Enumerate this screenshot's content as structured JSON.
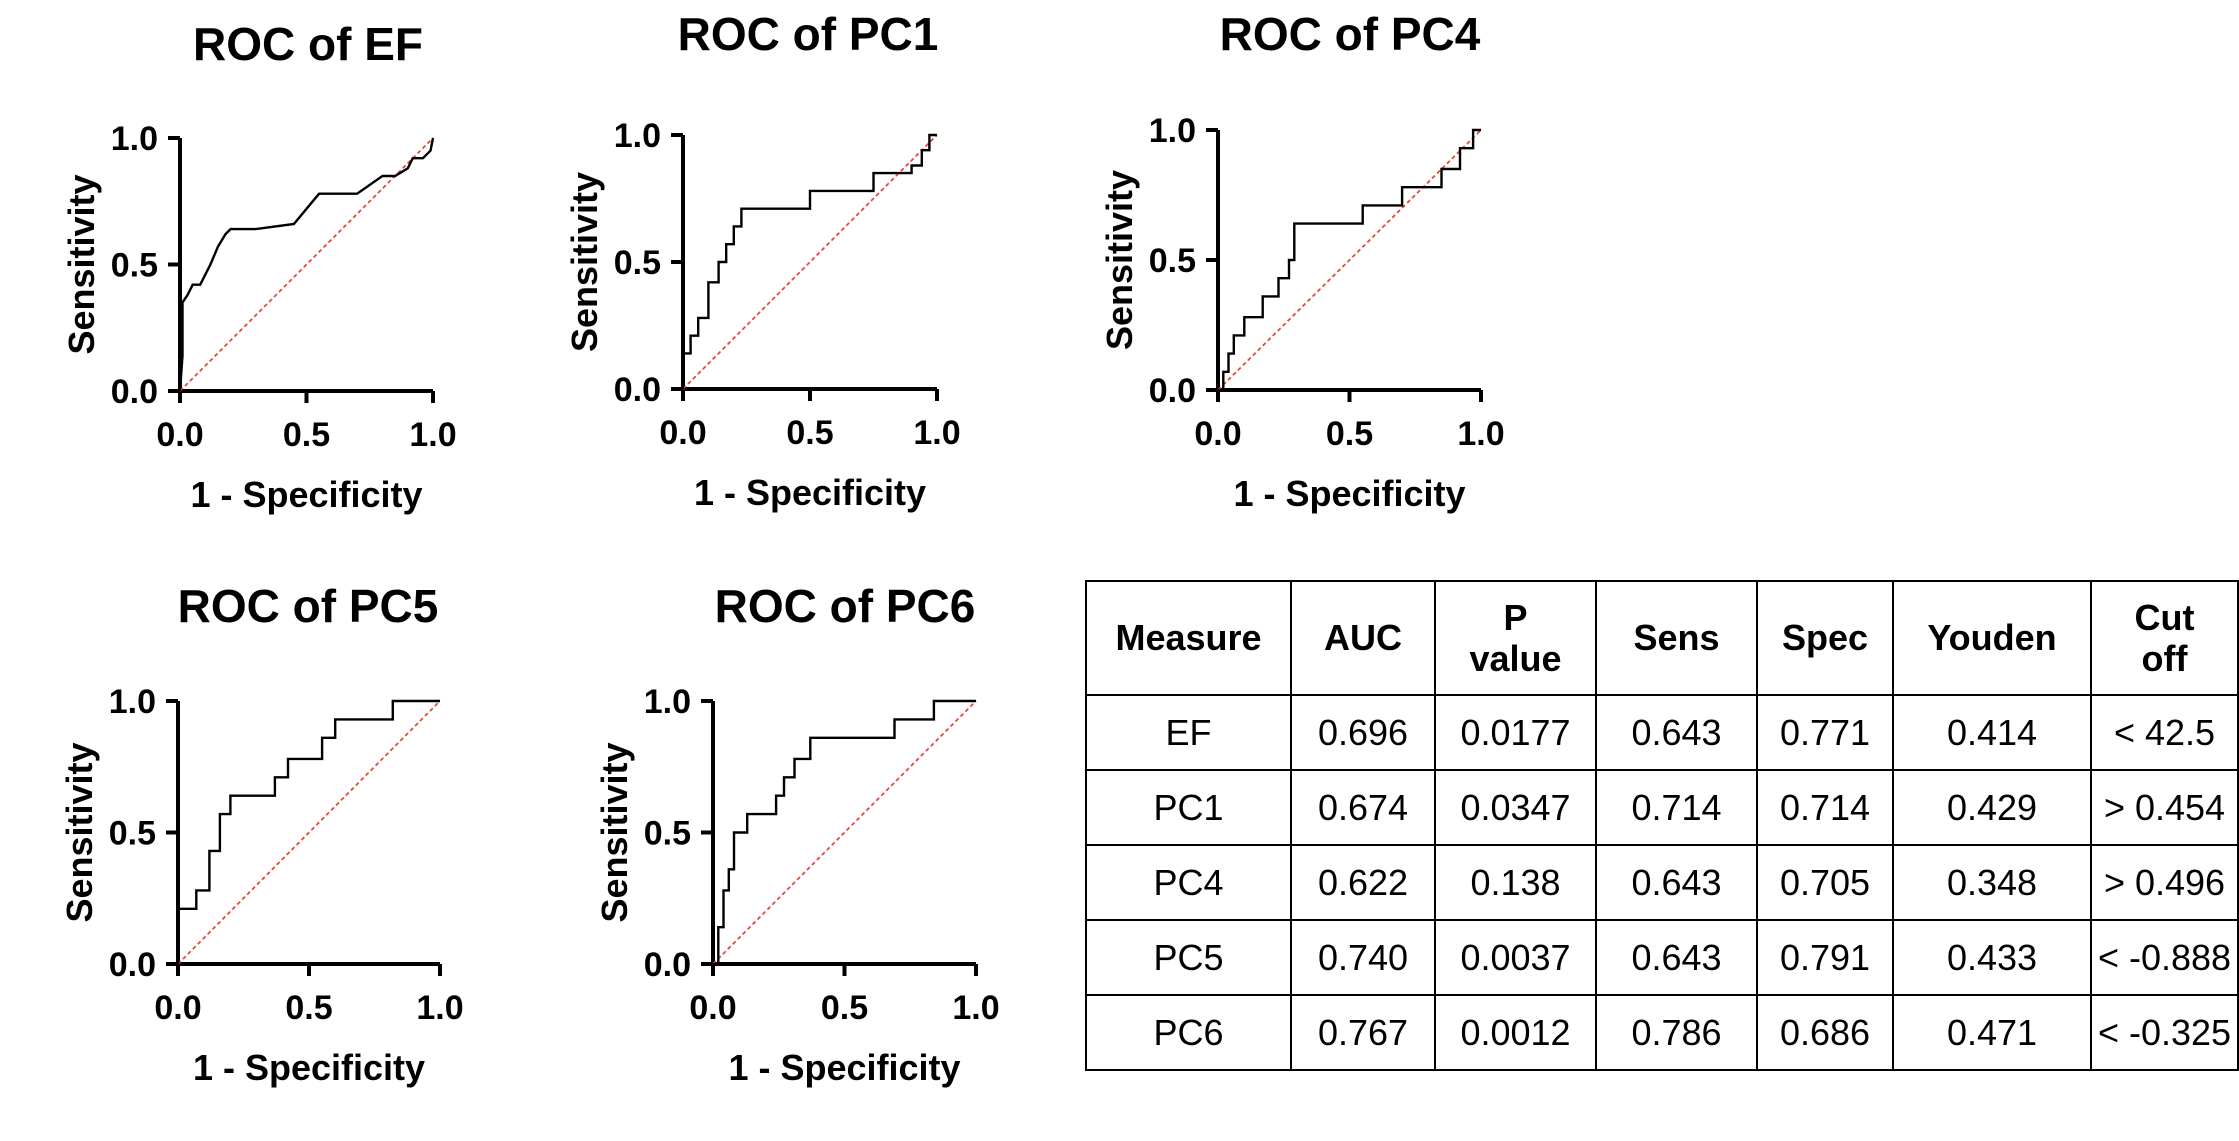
{
  "chart_data": [
    {
      "type": "line",
      "title": "ROC of EF",
      "xlabel": "1 - Specificity",
      "ylabel": "Sensitivity",
      "xlim": [
        0,
        1
      ],
      "ylim": [
        0,
        1
      ],
      "xticks": [
        "0.0",
        "0.5",
        "1.0"
      ],
      "yticks": [
        "0.0",
        "0.5",
        "1.0"
      ],
      "series": [
        {
          "name": "ROC curve",
          "x": [
            0,
            0.01,
            0.01,
            0.03,
            0.05,
            0.08,
            0.12,
            0.15,
            0.18,
            0.2,
            0.3,
            0.45,
            0.5,
            0.55,
            0.7,
            0.8,
            0.85,
            0.9,
            0.92,
            0.96,
            0.99,
            1.0
          ],
          "y": [
            0,
            0.14,
            0.35,
            0.38,
            0.42,
            0.42,
            0.5,
            0.57,
            0.62,
            0.64,
            0.64,
            0.66,
            0.72,
            0.78,
            0.78,
            0.85,
            0.85,
            0.88,
            0.92,
            0.92,
            0.95,
            1.0
          ]
        },
        {
          "name": "Chance",
          "x": [
            0,
            1
          ],
          "y": [
            0,
            1
          ]
        }
      ]
    },
    {
      "type": "line",
      "title": "ROC of PC1",
      "xlabel": "1 - Specificity",
      "ylabel": "Sensitivity",
      "xlim": [
        0,
        1
      ],
      "ylim": [
        0,
        1
      ],
      "xticks": [
        "0.0",
        "0.5",
        "1.0"
      ],
      "yticks": [
        "0.0",
        "0.5",
        "1.0"
      ],
      "series": [
        {
          "name": "ROC curve",
          "x": [
            0,
            0,
            0.03,
            0.03,
            0.06,
            0.06,
            0.1,
            0.1,
            0.14,
            0.14,
            0.17,
            0.17,
            0.2,
            0.2,
            0.23,
            0.23,
            0.29,
            0.29,
            0.5,
            0.5,
            0.75,
            0.75,
            0.9,
            0.9,
            0.94,
            0.94,
            0.97,
            0.97,
            1.0
          ],
          "y": [
            0,
            0.14,
            0.14,
            0.21,
            0.21,
            0.28,
            0.28,
            0.42,
            0.42,
            0.5,
            0.5,
            0.57,
            0.57,
            0.64,
            0.64,
            0.71,
            0.71,
            0.71,
            0.71,
            0.78,
            0.78,
            0.85,
            0.85,
            0.88,
            0.88,
            0.94,
            0.94,
            1.0,
            1.0
          ]
        },
        {
          "name": "Chance",
          "x": [
            0,
            1
          ],
          "y": [
            0,
            1
          ]
        }
      ]
    },
    {
      "type": "line",
      "title": "ROC of PC4",
      "xlabel": "1 - Specificity",
      "ylabel": "Sensitivity",
      "xlim": [
        0,
        1
      ],
      "ylim": [
        0,
        1
      ],
      "xticks": [
        "0.0",
        "0.5",
        "1.0"
      ],
      "yticks": [
        "0.0",
        "0.5",
        "1.0"
      ],
      "series": [
        {
          "name": "ROC curve",
          "x": [
            0,
            0.02,
            0.02,
            0.04,
            0.04,
            0.06,
            0.06,
            0.1,
            0.1,
            0.17,
            0.17,
            0.23,
            0.23,
            0.27,
            0.27,
            0.29,
            0.29,
            0.55,
            0.55,
            0.7,
            0.7,
            0.85,
            0.85,
            0.92,
            0.92,
            0.97,
            0.97,
            1.0
          ],
          "y": [
            0,
            0,
            0.07,
            0.07,
            0.14,
            0.14,
            0.21,
            0.21,
            0.28,
            0.28,
            0.36,
            0.36,
            0.43,
            0.43,
            0.5,
            0.5,
            0.64,
            0.64,
            0.71,
            0.71,
            0.78,
            0.78,
            0.85,
            0.85,
            0.93,
            0.93,
            1.0,
            1.0
          ]
        },
        {
          "name": "Chance",
          "x": [
            0,
            1
          ],
          "y": [
            0,
            1
          ]
        }
      ]
    },
    {
      "type": "line",
      "title": "ROC of PC5",
      "xlabel": "1 - Specificity",
      "ylabel": "Sensitivity",
      "xlim": [
        0,
        1
      ],
      "ylim": [
        0,
        1
      ],
      "xticks": [
        "0.0",
        "0.5",
        "1.0"
      ],
      "yticks": [
        "0.0",
        "0.5",
        "1.0"
      ],
      "series": [
        {
          "name": "ROC curve",
          "x": [
            0,
            0,
            0.07,
            0.07,
            0.12,
            0.12,
            0.16,
            0.16,
            0.2,
            0.2,
            0.37,
            0.37,
            0.42,
            0.42,
            0.55,
            0.55,
            0.6,
            0.6,
            0.82,
            0.82,
            1.0
          ],
          "y": [
            0,
            0.21,
            0.21,
            0.28,
            0.28,
            0.43,
            0.43,
            0.57,
            0.57,
            0.64,
            0.64,
            0.71,
            0.71,
            0.78,
            0.78,
            0.86,
            0.86,
            0.93,
            0.93,
            1.0,
            1.0
          ]
        },
        {
          "name": "Chance",
          "x": [
            0,
            1
          ],
          "y": [
            0,
            1
          ]
        }
      ]
    },
    {
      "type": "line",
      "title": "ROC of PC6",
      "xlabel": "1 - Specificity",
      "ylabel": "Sensitivity",
      "xlim": [
        0,
        1
      ],
      "ylim": [
        0,
        1
      ],
      "xticks": [
        "0.0",
        "0.5",
        "1.0"
      ],
      "yticks": [
        "0.0",
        "0.5",
        "1.0"
      ],
      "series": [
        {
          "name": "ROC curve",
          "x": [
            0,
            0.02,
            0.02,
            0.04,
            0.04,
            0.06,
            0.06,
            0.08,
            0.08,
            0.13,
            0.13,
            0.24,
            0.24,
            0.27,
            0.27,
            0.31,
            0.31,
            0.37,
            0.37,
            0.69,
            0.69,
            0.84,
            0.84,
            1.0
          ],
          "y": [
            0,
            0,
            0.14,
            0.14,
            0.28,
            0.28,
            0.36,
            0.36,
            0.5,
            0.5,
            0.57,
            0.57,
            0.64,
            0.64,
            0.71,
            0.71,
            0.78,
            0.78,
            0.86,
            0.86,
            0.93,
            0.93,
            1.0,
            1.0
          ]
        },
        {
          "name": "Chance",
          "x": [
            0,
            1
          ],
          "y": [
            0,
            1
          ]
        }
      ]
    },
    {
      "type": "table",
      "columns": [
        "Measure",
        "AUC",
        "P value",
        "Sens",
        "Spec",
        "Youden",
        "Cut off"
      ],
      "rows": [
        [
          "EF",
          "0.696",
          "0.0177",
          "0.643",
          "0.771",
          "0.414",
          "< 42.5"
        ],
        [
          "PC1",
          "0.674",
          "0.0347",
          "0.714",
          "0.714",
          "0.429",
          "> 0.454"
        ],
        [
          "PC4",
          "0.622",
          "0.138",
          "0.643",
          "0.705",
          "0.348",
          "> 0.496"
        ],
        [
          "PC5",
          "0.740",
          "0.0037",
          "0.643",
          "0.791",
          "0.433",
          "< -0.888"
        ],
        [
          "PC6",
          "0.767",
          "0.0012",
          "0.786",
          "0.686",
          "0.471",
          "< -0.325"
        ]
      ]
    }
  ],
  "colors": {
    "curve": "#000000",
    "chance_line": "#e8463c",
    "axis": "#000000"
  }
}
